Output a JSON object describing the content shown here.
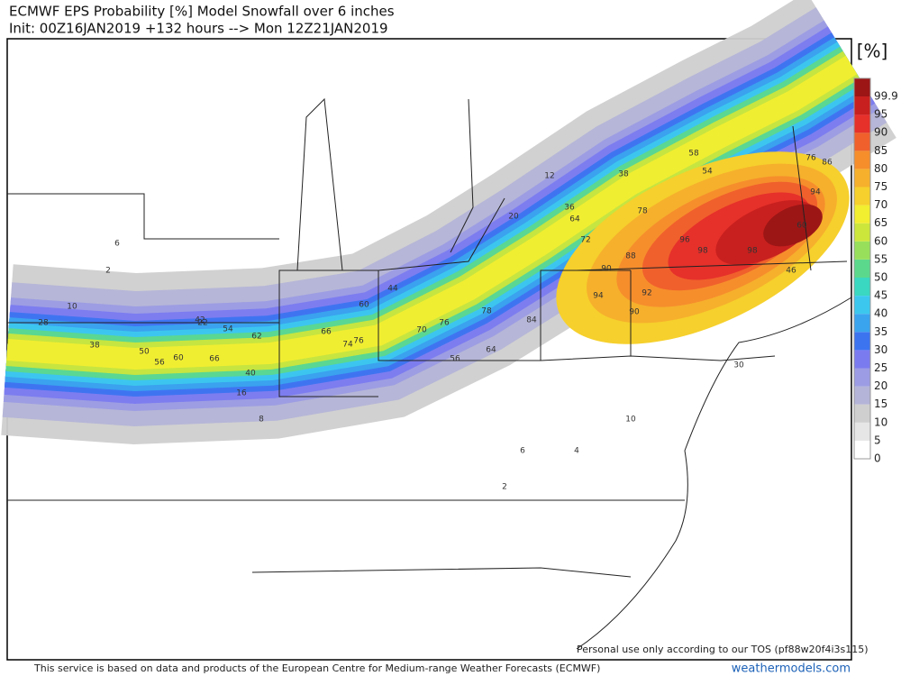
{
  "header": {
    "title": "ECMWF EPS Probability [%] Model Snowfall over 6 inches",
    "subtitle": "Init: 00Z16JAN2019 +132 hours --> Mon 12Z21JAN2019"
  },
  "colorbar": {
    "unit": "[%]",
    "levels": [
      0,
      5,
      10,
      15,
      20,
      25,
      30,
      35,
      40,
      45,
      50,
      55,
      60,
      65,
      70,
      75,
      80,
      85,
      90,
      95,
      99.9
    ],
    "colors": [
      "#ffffff",
      "#e6e6e6",
      "#cfcfcf",
      "#b4b4d8",
      "#9c9ce4",
      "#7b7bf0",
      "#3c74f0",
      "#3aa4ee",
      "#3cc8ee",
      "#3ad8c0",
      "#5cd88c",
      "#98e05c",
      "#cce63c",
      "#f2ee30",
      "#f6d02c",
      "#f6b02c",
      "#f68e2c",
      "#f0602c",
      "#e6302a",
      "#c8201e",
      "#9c1616"
    ]
  },
  "map": {
    "labels": [
      2,
      6,
      10,
      28,
      38,
      50,
      56,
      60,
      66,
      40,
      16,
      8,
      22,
      42,
      54,
      62,
      74,
      76,
      66,
      44,
      60,
      70,
      76,
      78,
      56,
      64,
      84,
      90,
      94,
      98,
      96,
      92,
      90,
      88,
      78,
      72,
      64,
      36,
      20,
      12,
      38,
      54,
      58,
      60,
      76,
      86,
      94,
      98,
      46,
      30,
      10,
      4,
      6,
      2
    ]
  },
  "footer": {
    "disclaimer": "Personal use only according to our TOS (pf88w20f4i3s115)",
    "credit": "This service is based on data and products of the European Centre for Medium-range Weather Forecasts (ECMWF)",
    "brand": "weathermodels.com"
  }
}
